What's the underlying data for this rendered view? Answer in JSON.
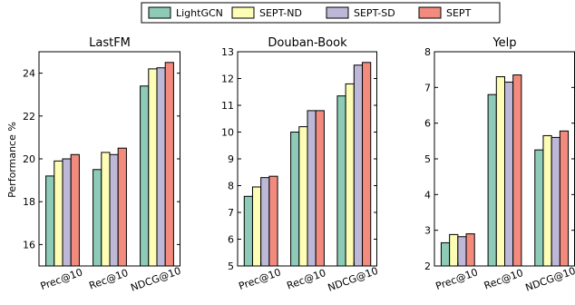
{
  "chart_data": {
    "type": "bar",
    "ylabel": "Performance %",
    "legend": {
      "placement": "top-center",
      "entries": [
        "LightGCN",
        "SEPT-ND",
        "SEPT-SD",
        "SEPT"
      ]
    },
    "colors": {
      "LightGCN": "#8dcbb8",
      "SEPT-ND": "#fdfdb5",
      "SEPT-SD": "#bdb8d8",
      "SEPT": "#f28b7e"
    },
    "panels": [
      {
        "title": "LastFM",
        "categories": [
          "Prec@10",
          "Rec@10",
          "NDCG@10"
        ],
        "ylim": [
          15,
          25
        ],
        "yticks": [
          16,
          18,
          20,
          22,
          24
        ],
        "series": [
          {
            "name": "LightGCN",
            "values": [
              19.2,
              19.5,
              23.4
            ]
          },
          {
            "name": "SEPT-ND",
            "values": [
              19.9,
              20.3,
              24.2
            ]
          },
          {
            "name": "SEPT-SD",
            "values": [
              20.0,
              20.2,
              24.25
            ]
          },
          {
            "name": "SEPT",
            "values": [
              20.2,
              20.5,
              24.5
            ]
          }
        ]
      },
      {
        "title": "Douban-Book",
        "categories": [
          "Prec@10",
          "Rec@10",
          "NDCG@10"
        ],
        "ylim": [
          5,
          13
        ],
        "yticks": [
          5,
          6,
          7,
          8,
          9,
          10,
          11,
          12,
          13
        ],
        "series": [
          {
            "name": "LightGCN",
            "values": [
              7.6,
              10.0,
              11.35
            ]
          },
          {
            "name": "SEPT-ND",
            "values": [
              7.95,
              10.2,
              11.8
            ]
          },
          {
            "name": "SEPT-SD",
            "values": [
              8.3,
              10.8,
              12.5
            ]
          },
          {
            "name": "SEPT",
            "values": [
              8.35,
              10.8,
              12.6
            ]
          }
        ]
      },
      {
        "title": "Yelp",
        "categories": [
          "Prec@10",
          "Rec@10",
          "NDCG@10"
        ],
        "ylim": [
          2,
          8
        ],
        "yticks": [
          2,
          3,
          4,
          5,
          6,
          7,
          8
        ],
        "series": [
          {
            "name": "LightGCN",
            "values": [
              2.65,
              6.8,
              5.25
            ]
          },
          {
            "name": "SEPT-ND",
            "values": [
              2.88,
              7.3,
              5.65
            ]
          },
          {
            "name": "SEPT-SD",
            "values": [
              2.82,
              7.15,
              5.6
            ]
          },
          {
            "name": "SEPT",
            "values": [
              2.9,
              7.35,
              5.78
            ]
          }
        ]
      }
    ]
  }
}
